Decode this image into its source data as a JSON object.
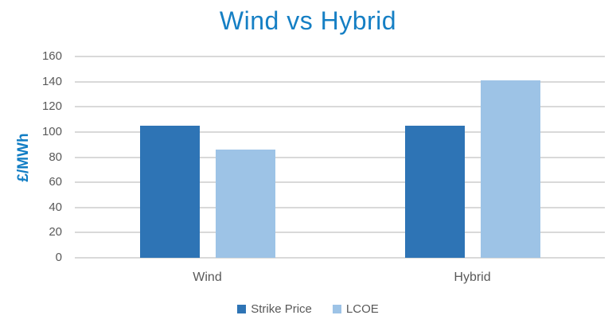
{
  "colors": {
    "title_text": "#157FC4",
    "axis_label_text": "#117DC4",
    "tick_text": "#595959",
    "category_text": "#595959",
    "legend_text": "#595959",
    "gridline": "#D9D9D9",
    "background": "#FFFFFF"
  },
  "chart_data": {
    "type": "bar",
    "title": "Wind vs Hybrid",
    "ylabel": "£/MWh",
    "xlabel": "",
    "categories": [
      "Wind",
      "Hybrid"
    ],
    "series": [
      {
        "name": "Strike Price",
        "color": "#2E74B5",
        "values": [
          105,
          105
        ]
      },
      {
        "name": "LCOE",
        "color": "#9DC3E6",
        "values": [
          86,
          141
        ]
      }
    ],
    "ylim": [
      0,
      160
    ],
    "ytick_step": 20,
    "ytick_labels": [
      "0",
      "20",
      "40",
      "60",
      "80",
      "100",
      "120",
      "140",
      "160"
    ],
    "grid": "horizontal",
    "legend_position": "bottom"
  }
}
